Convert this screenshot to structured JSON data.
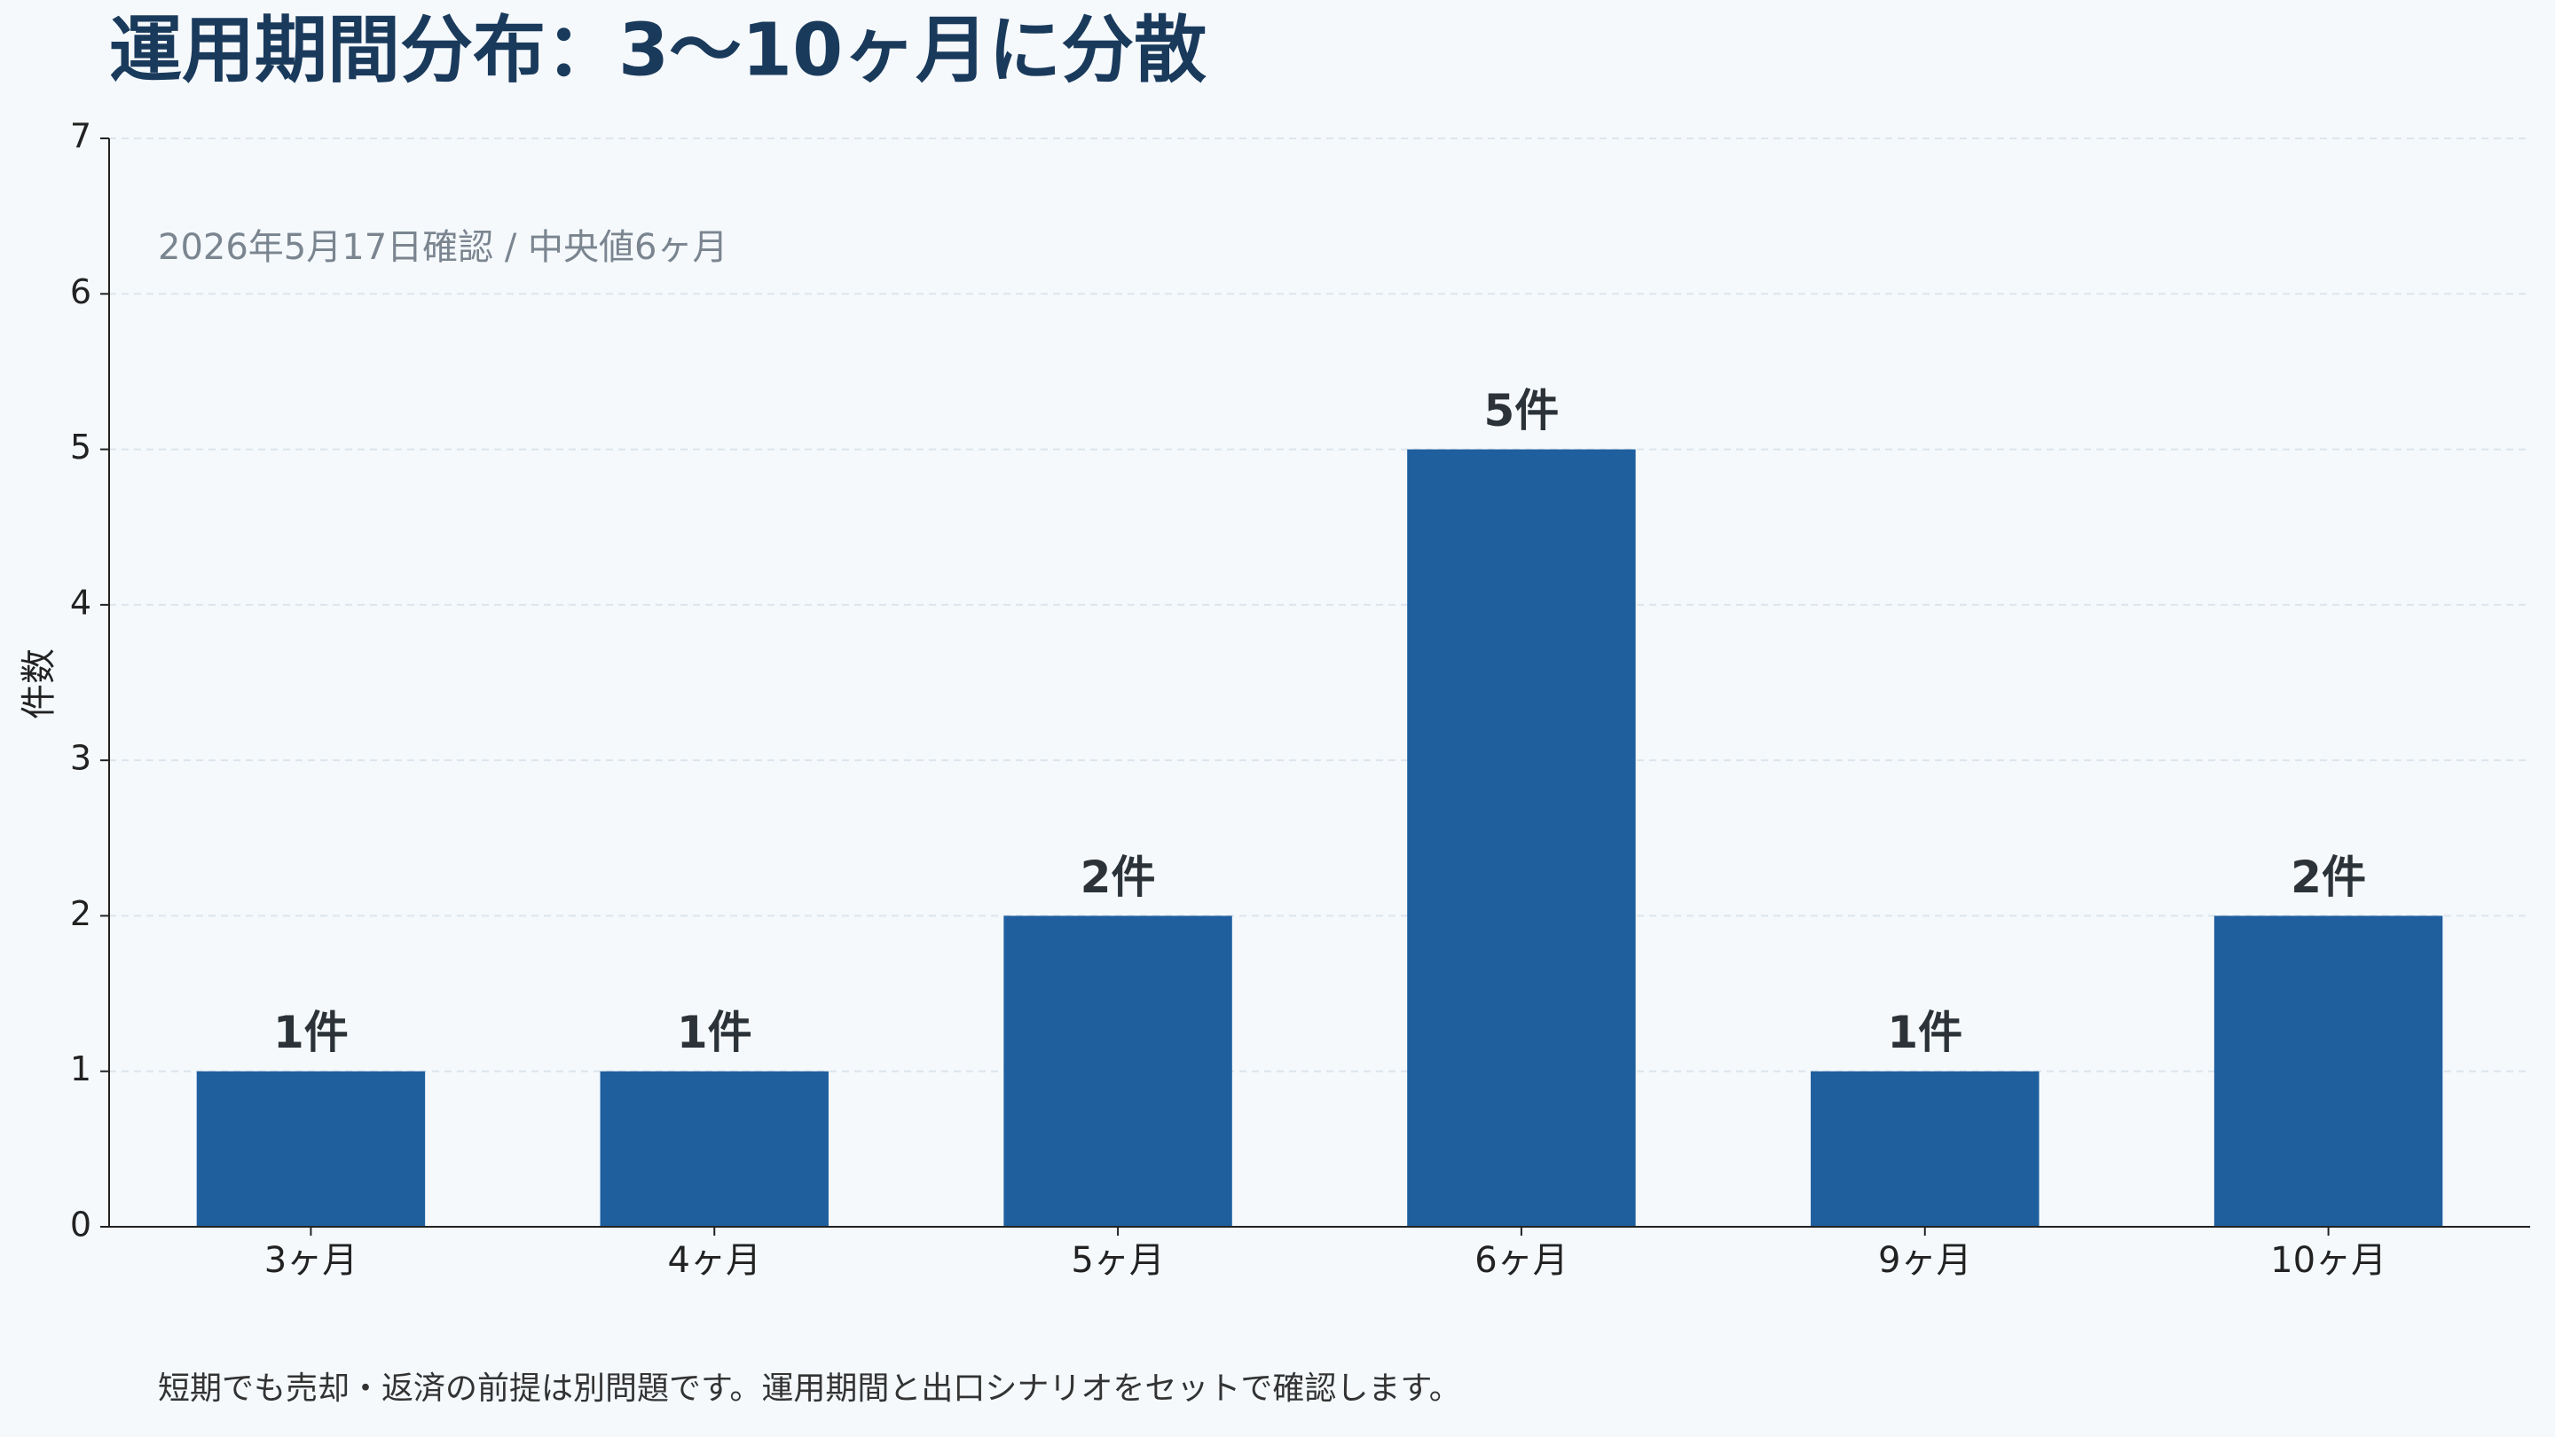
{
  "chart_data": {
    "type": "bar",
    "title": "運用期間分布：3〜10ヶ月に分散",
    "subtitle": "2026年5月17日確認 / 中央値6ヶ月",
    "footnote": "短期でも売却・返済の前提は別問題です。運用期間と出口シナリオをセットで確認します。",
    "y_label": "件数",
    "categories": [
      "3ヶ月",
      "4ヶ月",
      "5ヶ月",
      "6ヶ月",
      "9ヶ月",
      "10ヶ月"
    ],
    "values": [
      1,
      1,
      2,
      5,
      1,
      2
    ],
    "value_labels": [
      "1件",
      "1件",
      "2件",
      "5件",
      "1件",
      "2件"
    ],
    "color": "#1f5f9e",
    "ylim": [
      0,
      7
    ],
    "yticks": [
      0,
      1,
      2,
      3,
      4,
      5,
      6,
      7
    ],
    "grid": true
  }
}
